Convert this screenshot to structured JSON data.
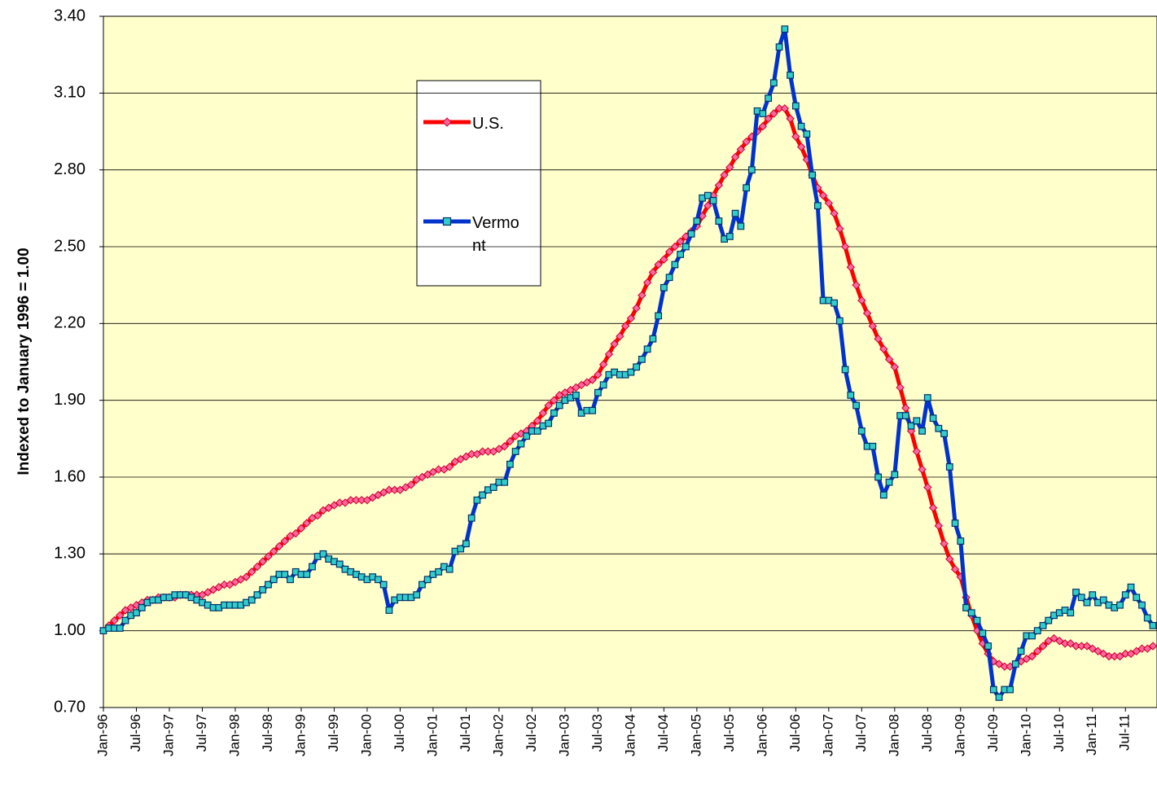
{
  "chart_data": {
    "type": "line",
    "y_label": "Indexed to January 1996 = 1.00",
    "categories": [
      "Jan-96",
      null,
      null,
      null,
      null,
      null,
      "Jul-96",
      null,
      null,
      null,
      null,
      null,
      "Jan-97",
      null,
      null,
      null,
      null,
      null,
      "Jul-97",
      null,
      null,
      null,
      null,
      null,
      "Jan-98",
      null,
      null,
      null,
      null,
      null,
      "Jul-98",
      null,
      null,
      null,
      null,
      null,
      "Jan-99",
      null,
      null,
      null,
      null,
      null,
      "Jul-99",
      null,
      null,
      null,
      null,
      null,
      "Jan-00",
      null,
      null,
      null,
      null,
      null,
      "Jul-00",
      null,
      null,
      null,
      null,
      null,
      "Jan-01",
      null,
      null,
      null,
      null,
      null,
      "Jul-01",
      null,
      null,
      null,
      null,
      null,
      "Jan-02",
      null,
      null,
      null,
      null,
      null,
      "Jul-02",
      null,
      null,
      null,
      null,
      null,
      "Jan-03",
      null,
      null,
      null,
      null,
      null,
      "Jul-03",
      null,
      null,
      null,
      null,
      null,
      "Jan-04",
      null,
      null,
      null,
      null,
      null,
      "Jul-04",
      null,
      null,
      null,
      null,
      null,
      "Jan-05",
      null,
      null,
      null,
      null,
      null,
      "Jul-05",
      null,
      null,
      null,
      null,
      null,
      "Jan-06",
      null,
      null,
      null,
      null,
      null,
      "Jul-06",
      null,
      null,
      null,
      null,
      null,
      "Jan-07",
      null,
      null,
      null,
      null,
      null,
      "Jul-07",
      null,
      null,
      null,
      null,
      null,
      "Jan-08",
      null,
      null,
      null,
      null,
      null,
      "Jul-08",
      null,
      null,
      null,
      null,
      null,
      "Jan-09",
      null,
      null,
      null,
      null,
      null,
      "Jul-09",
      null,
      null,
      null,
      null,
      null,
      "Jan-10",
      null,
      null,
      null,
      null,
      null,
      "Jul-10",
      null,
      null,
      null,
      null,
      null,
      "Jan-11",
      null,
      null,
      null,
      null,
      null,
      "Jul-11",
      null,
      null,
      null,
      null,
      null
    ],
    "series": [
      {
        "name": "U.S.",
        "color": "#ff0000",
        "marker": "diamond",
        "marker_color": "#ff6699",
        "values": [
          1.0,
          1.02,
          1.04,
          1.06,
          1.08,
          1.09,
          1.1,
          1.11,
          1.12,
          1.12,
          1.13,
          1.13,
          1.13,
          1.13,
          1.14,
          1.14,
          1.14,
          1.14,
          1.14,
          1.15,
          1.16,
          1.17,
          1.18,
          1.18,
          1.19,
          1.2,
          1.21,
          1.23,
          1.25,
          1.27,
          1.29,
          1.31,
          1.33,
          1.35,
          1.37,
          1.38,
          1.4,
          1.42,
          1.44,
          1.45,
          1.47,
          1.48,
          1.49,
          1.5,
          1.5,
          1.51,
          1.51,
          1.51,
          1.51,
          1.52,
          1.53,
          1.54,
          1.55,
          1.55,
          1.55,
          1.56,
          1.57,
          1.59,
          1.6,
          1.61,
          1.62,
          1.63,
          1.63,
          1.64,
          1.66,
          1.67,
          1.68,
          1.69,
          1.69,
          1.7,
          1.7,
          1.7,
          1.71,
          1.72,
          1.74,
          1.76,
          1.77,
          1.78,
          1.8,
          1.82,
          1.85,
          1.88,
          1.9,
          1.92,
          1.93,
          1.94,
          1.95,
          1.96,
          1.97,
          1.98,
          2.0,
          2.04,
          2.08,
          2.12,
          2.15,
          2.19,
          2.22,
          2.26,
          2.31,
          2.36,
          2.4,
          2.43,
          2.45,
          2.48,
          2.5,
          2.52,
          2.54,
          2.56,
          2.58,
          2.62,
          2.66,
          2.7,
          2.74,
          2.78,
          2.81,
          2.85,
          2.88,
          2.91,
          2.93,
          2.95,
          2.97,
          3.0,
          3.02,
          3.04,
          3.04,
          3.0,
          2.93,
          2.89,
          2.84,
          2.78,
          2.73,
          2.7,
          2.67,
          2.63,
          2.57,
          2.5,
          2.42,
          2.35,
          2.29,
          2.24,
          2.19,
          2.14,
          2.1,
          2.06,
          2.03,
          1.95,
          1.87,
          1.78,
          1.7,
          1.63,
          1.56,
          1.48,
          1.41,
          1.34,
          1.28,
          1.24,
          1.21,
          1.13,
          1.06,
          1.0,
          0.95,
          0.91,
          0.88,
          0.87,
          0.86,
          0.86,
          0.87,
          0.88,
          0.89,
          0.9,
          0.92,
          0.94,
          0.96,
          0.97,
          0.96,
          0.95,
          0.95,
          0.94,
          0.94,
          0.94,
          0.93,
          0.92,
          0.91,
          0.9,
          0.9,
          0.9,
          0.91,
          0.91,
          0.92,
          0.93,
          0.93,
          0.94
        ]
      },
      {
        "name": "Vermont",
        "color": "#0033cc",
        "marker": "square",
        "marker_color": "#33cccc",
        "values": [
          1.0,
          1.01,
          1.01,
          1.01,
          1.04,
          1.06,
          1.07,
          1.09,
          1.11,
          1.12,
          1.12,
          1.13,
          1.13,
          1.14,
          1.14,
          1.14,
          1.13,
          1.12,
          1.11,
          1.1,
          1.09,
          1.09,
          1.1,
          1.1,
          1.1,
          1.1,
          1.11,
          1.12,
          1.14,
          1.16,
          1.18,
          1.2,
          1.22,
          1.22,
          1.2,
          1.23,
          1.22,
          1.22,
          1.25,
          1.29,
          1.3,
          1.28,
          1.27,
          1.26,
          1.24,
          1.23,
          1.22,
          1.21,
          1.2,
          1.21,
          1.2,
          1.18,
          1.08,
          1.12,
          1.13,
          1.13,
          1.13,
          1.14,
          1.18,
          1.2,
          1.22,
          1.23,
          1.25,
          1.24,
          1.31,
          1.32,
          1.34,
          1.44,
          1.51,
          1.53,
          1.55,
          1.56,
          1.58,
          1.58,
          1.65,
          1.7,
          1.73,
          1.76,
          1.78,
          1.78,
          1.8,
          1.81,
          1.85,
          1.88,
          1.9,
          1.91,
          1.92,
          1.85,
          1.86,
          1.86,
          1.93,
          1.96,
          2.0,
          2.01,
          2.0,
          2.0,
          2.01,
          2.03,
          2.06,
          2.1,
          2.14,
          2.23,
          2.34,
          2.38,
          2.43,
          2.47,
          2.5,
          2.55,
          2.6,
          2.69,
          2.7,
          2.68,
          2.6,
          2.53,
          2.54,
          2.63,
          2.58,
          2.73,
          2.8,
          3.03,
          3.02,
          3.08,
          3.14,
          3.28,
          3.35,
          3.17,
          3.05,
          2.97,
          2.94,
          2.78,
          2.66,
          2.29,
          2.29,
          2.28,
          2.21,
          2.02,
          1.92,
          1.88,
          1.78,
          1.72,
          1.72,
          1.6,
          1.53,
          1.58,
          1.61,
          1.84,
          1.84,
          1.8,
          1.82,
          1.78,
          1.91,
          1.83,
          1.79,
          1.77,
          1.64,
          1.42,
          1.35,
          1.09,
          1.07,
          1.04,
          0.99,
          0.94,
          0.77,
          0.74,
          0.77,
          0.77,
          0.87,
          0.92,
          0.98,
          0.98,
          1.0,
          1.02,
          1.04,
          1.06,
          1.07,
          1.08,
          1.07,
          1.15,
          1.13,
          1.11,
          1.14,
          1.11,
          1.12,
          1.1,
          1.09,
          1.1,
          1.14,
          1.17,
          1.13,
          1.1,
          1.05,
          1.02
        ]
      }
    ],
    "ylim": [
      0.7,
      3.4
    ],
    "yticks": [
      {
        "value": 0.7,
        "label": "0.70"
      },
      {
        "value": 1.0,
        "label": "1.00"
      },
      {
        "value": 1.3,
        "label": "1.30"
      },
      {
        "value": 1.6,
        "label": "1.60"
      },
      {
        "value": 1.9,
        "label": "1.90"
      },
      {
        "value": 2.2,
        "label": "2.20"
      },
      {
        "value": 2.5,
        "label": "2.50"
      },
      {
        "value": 2.8,
        "label": "2.80"
      },
      {
        "value": 3.1,
        "label": "3.10"
      },
      {
        "value": 3.4,
        "label": "3.40"
      }
    ],
    "grid": true
  }
}
